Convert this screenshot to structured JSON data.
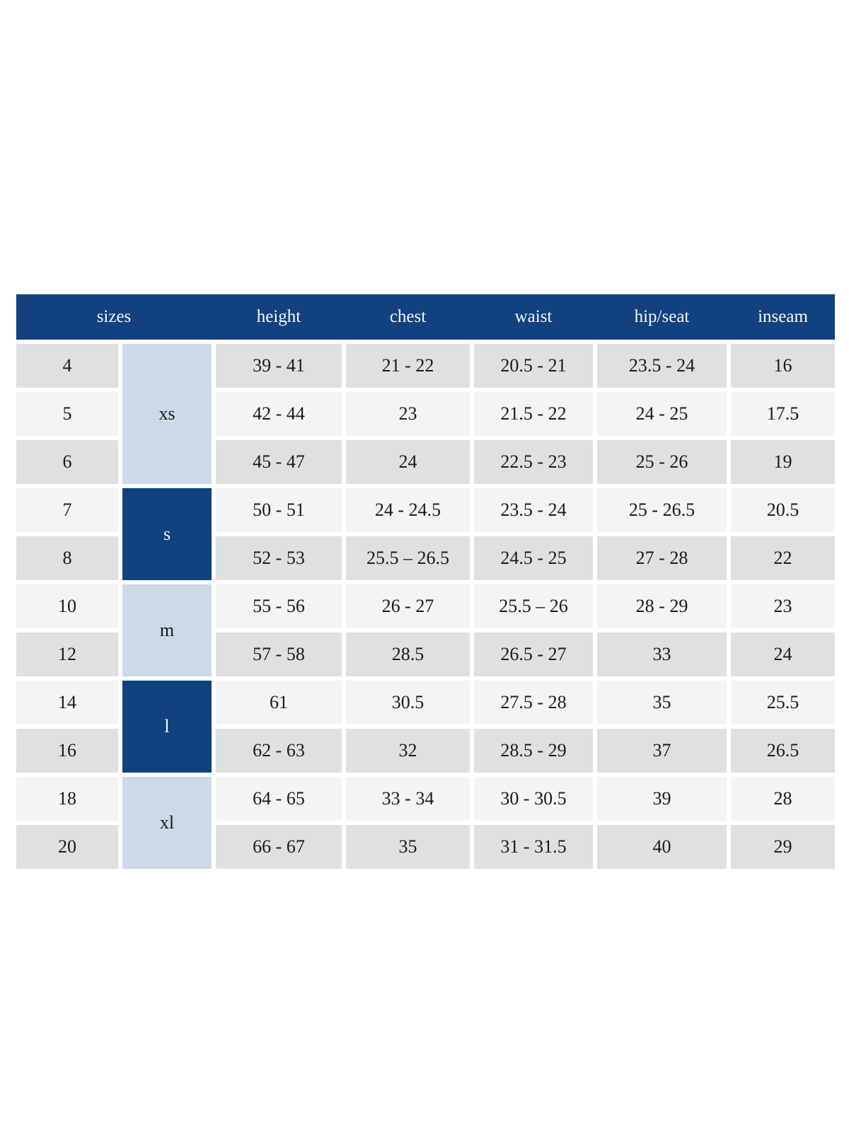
{
  "table": {
    "header": {
      "sizes": "sizes",
      "height": "height",
      "chest": "chest",
      "waist": "waist",
      "hip_seat": "hip/seat",
      "inseam": "inseam"
    },
    "groups": [
      {
        "label": "xs",
        "span_rows": 3,
        "style": "light"
      },
      {
        "label": "s",
        "span_rows": 2,
        "style": "dark"
      },
      {
        "label": "m",
        "span_rows": 2,
        "style": "light"
      },
      {
        "label": "l",
        "span_rows": 2,
        "style": "dark"
      },
      {
        "label": "xl",
        "span_rows": 2,
        "style": "light"
      }
    ],
    "rows": [
      {
        "size": "4",
        "height": "39 - 41",
        "chest": "21 - 22",
        "waist": "20.5 - 21",
        "hip_seat": "23.5 - 24",
        "inseam": "16"
      },
      {
        "size": "5",
        "height": "42 - 44",
        "chest": "23",
        "waist": "21.5 - 22",
        "hip_seat": "24 - 25",
        "inseam": "17.5"
      },
      {
        "size": "6",
        "height": "45 - 47",
        "chest": "24",
        "waist": "22.5 - 23",
        "hip_seat": "25 - 26",
        "inseam": "19"
      },
      {
        "size": "7",
        "height": "50 - 51",
        "chest": "24 - 24.5",
        "waist": "23.5 - 24",
        "hip_seat": "25 - 26.5",
        "inseam": "20.5"
      },
      {
        "size": "8",
        "height": "52 - 53",
        "chest": "25.5 – 26.5",
        "waist": "24.5 - 25",
        "hip_seat": "27 - 28",
        "inseam": "22"
      },
      {
        "size": "10",
        "height": "55 - 56",
        "chest": "26 - 27",
        "waist": "25.5 – 26",
        "hip_seat": "28 - 29",
        "inseam": "23"
      },
      {
        "size": "12",
        "height": "57 - 58",
        "chest": "28.5",
        "waist": "26.5 - 27",
        "hip_seat": "33",
        "inseam": "24"
      },
      {
        "size": "14",
        "height": "61",
        "chest": "30.5",
        "waist": "27.5 - 28",
        "hip_seat": "35",
        "inseam": "25.5"
      },
      {
        "size": "16",
        "height": "62 - 63",
        "chest": "32",
        "waist": "28.5 - 29",
        "hip_seat": "37",
        "inseam": "26.5"
      },
      {
        "size": "18",
        "height": "64 - 65",
        "chest": "33 - 34",
        "waist": "30 - 30.5",
        "hip_seat": "39",
        "inseam": "28"
      },
      {
        "size": "20",
        "height": "66 - 67",
        "chest": "35",
        "waist": "31 - 31.5",
        "hip_seat": "40",
        "inseam": "29"
      }
    ]
  },
  "colors": {
    "header_blue": "#11417f",
    "group_light_blue": "#ccd9e8",
    "row_gray": "#e0e0e0",
    "row_light": "#f4f4f4",
    "text_dark": "#1a1a1a",
    "header_text": "#f5f7fa",
    "page_bg": "#ffffff"
  }
}
